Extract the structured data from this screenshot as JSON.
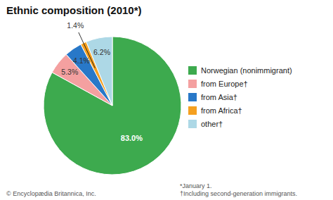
{
  "chart_data": {
    "type": "pie",
    "title": "Ethnic composition (2010*)",
    "categories": [
      "Norwegian (nonimmigrant)",
      "from Europe†",
      "from Asia†",
      "from Africa†",
      "other†"
    ],
    "values": [
      83.0,
      5.3,
      4.1,
      1.4,
      6.2
    ],
    "value_labels": [
      "83.0%",
      "5.3%",
      "4.1%",
      "1.4%",
      "6.2%"
    ],
    "colors": [
      "#3daa4e",
      "#f4a0a0",
      "#2878c8",
      "#f5a020",
      "#add8e6"
    ],
    "data_labels": true,
    "legend": "right",
    "annotations": [
      "© Encyclopædia Britannica, Inc.",
      "*January 1.",
      "†Including second-generation immigrants."
    ]
  }
}
